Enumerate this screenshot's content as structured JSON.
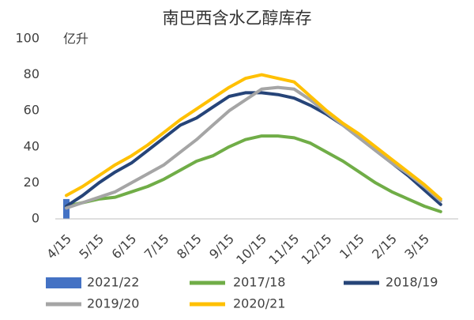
{
  "chart_data": {
    "type": "line",
    "title": "南巴西含水乙醇库存",
    "y_label": "亿升",
    "categories": [
      "4/15",
      null,
      "5/15",
      null,
      "6/15",
      null,
      "7/15",
      null,
      "8/15",
      null,
      "9/15",
      null,
      "10/15",
      null,
      "11/15",
      null,
      "12/15",
      null,
      "1/15",
      null,
      "2/15",
      null,
      "3/15",
      null
    ],
    "ylim": [
      0,
      100
    ],
    "yticks": [
      0,
      20,
      40,
      60,
      80,
      100
    ],
    "grid": false,
    "legend": "bottom",
    "series": [
      {
        "name": "2021/22",
        "style": "bar",
        "color": "#4472c4",
        "values": [
          11,
          null,
          null,
          null,
          null,
          null,
          null,
          null,
          null,
          null,
          null,
          null,
          null,
          null,
          null,
          null,
          null,
          null,
          null,
          null,
          null,
          null,
          null,
          null
        ]
      },
      {
        "name": "2017/18",
        "style": "line",
        "color": "#70ad47",
        "values": [
          7,
          9,
          11,
          12,
          15,
          18,
          22,
          27,
          32,
          35,
          40,
          44,
          46,
          46,
          45,
          42,
          37,
          32,
          26,
          20,
          15,
          11,
          7,
          4
        ]
      },
      {
        "name": "2018/19",
        "style": "line",
        "color": "#264478",
        "values": [
          7,
          13,
          20,
          26,
          31,
          38,
          45,
          52,
          56,
          62,
          68,
          70,
          70,
          69,
          67,
          63,
          58,
          52,
          45,
          38,
          31,
          24,
          16,
          8
        ]
      },
      {
        "name": "2019/20",
        "style": "line",
        "color": "#a5a5a5",
        "values": [
          6,
          9,
          12,
          15,
          20,
          25,
          30,
          37,
          44,
          52,
          60,
          66,
          72,
          73,
          72,
          66,
          59,
          52,
          45,
          38,
          31,
          25,
          18,
          10
        ]
      },
      {
        "name": "2020/21",
        "style": "line",
        "color": "#ffc000",
        "values": [
          13,
          18,
          24,
          30,
          35,
          41,
          48,
          55,
          61,
          67,
          73,
          78,
          80,
          78,
          76,
          68,
          60,
          53,
          47,
          40,
          33,
          26,
          19,
          11
        ]
      }
    ]
  }
}
